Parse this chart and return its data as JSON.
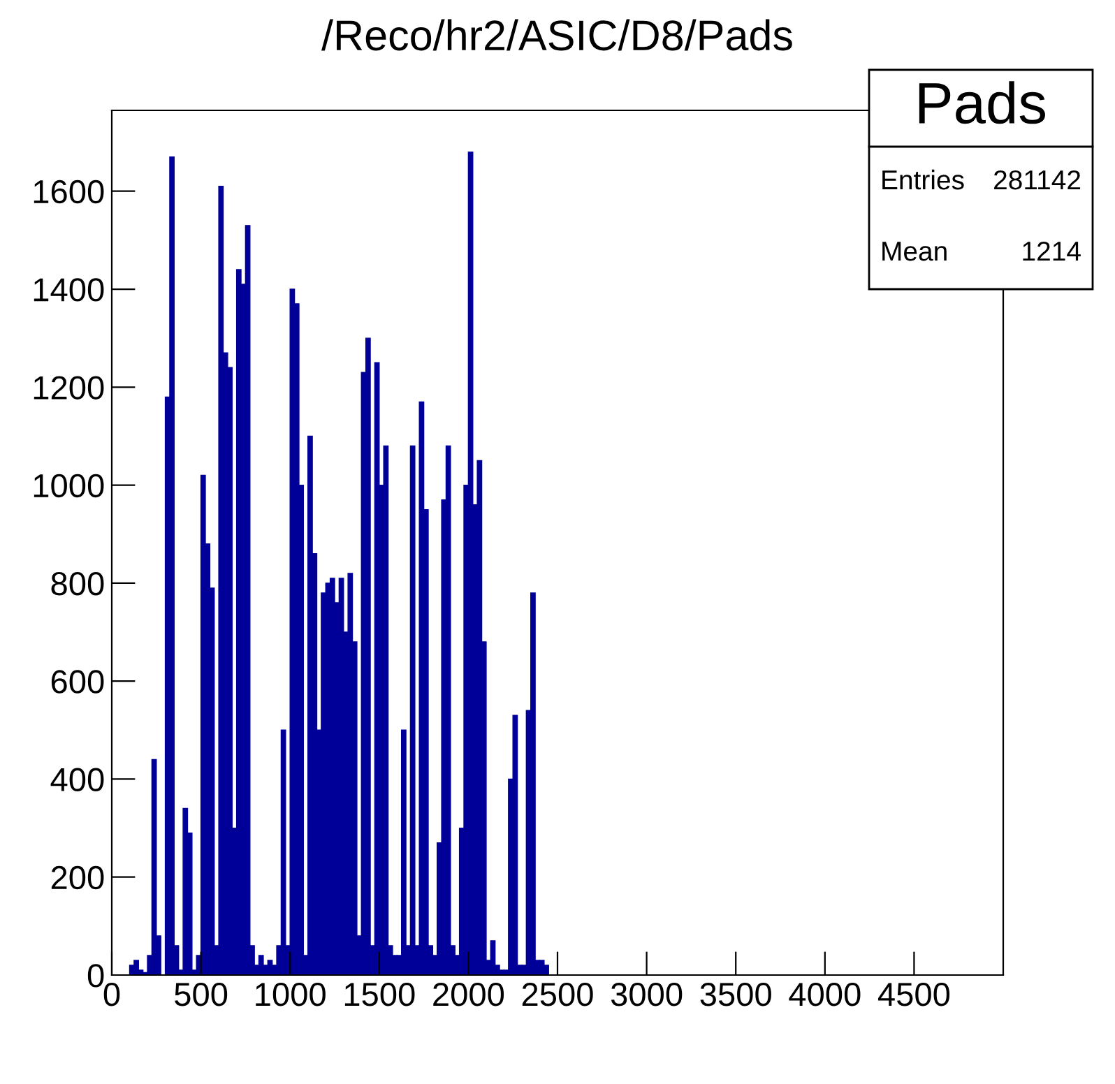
{
  "chart_data": {
    "type": "histogram",
    "title": "/Reco/hr2/ASIC/D8/Pads",
    "bins": [
      0,
      25,
      50,
      75,
      100,
      125,
      150,
      175,
      200,
      225,
      250,
      275,
      300,
      325,
      350,
      375,
      400,
      425,
      450,
      475,
      500,
      525,
      550,
      575,
      600,
      625,
      650,
      675,
      700,
      725,
      750,
      775,
      800,
      825,
      850,
      875,
      900,
      925,
      950,
      975,
      1000,
      1025,
      1050,
      1075,
      1100,
      1125,
      1150,
      1175,
      1200,
      1225,
      1250,
      1275,
      1300,
      1325,
      1350,
      1375,
      1400,
      1425,
      1450,
      1475,
      1500,
      1525,
      1550,
      1575,
      1600,
      1625,
      1650,
      1675,
      1700,
      1725,
      1750,
      1775,
      1800,
      1825,
      1850,
      1875,
      1900,
      1925,
      1950,
      1975,
      2000,
      2025,
      2050,
      2075,
      2100,
      2125,
      2150,
      2175,
      2200,
      2225,
      2250,
      2275,
      2300,
      2325,
      2350,
      2375,
      2400,
      2425,
      2450,
      2475,
      2500
    ],
    "values": [
      0,
      0,
      0,
      0,
      20,
      30,
      10,
      5,
      40,
      440,
      80,
      0,
      1180,
      1670,
      60,
      10,
      340,
      290,
      10,
      40,
      1020,
      880,
      790,
      60,
      1610,
      1270,
      1240,
      300,
      1440,
      1410,
      1530,
      60,
      20,
      40,
      20,
      30,
      20,
      60,
      500,
      60,
      1400,
      1370,
      1000,
      40,
      1100,
      860,
      500,
      780,
      800,
      810,
      760,
      810,
      700,
      820,
      680,
      80,
      1230,
      1300,
      60,
      1250,
      1000,
      1080,
      60,
      40,
      40,
      500,
      60,
      1080,
      60,
      1170,
      950,
      60,
      40,
      270,
      970,
      1080,
      60,
      40,
      300,
      1000,
      1680,
      960,
      1050,
      680,
      30,
      70,
      20,
      10,
      10,
      400,
      530,
      20,
      20,
      540,
      780,
      30,
      30,
      20,
      0,
      0
    ],
    "color": "#000099",
    "xlim": [
      0,
      5000
    ],
    "xticks": [
      0,
      500,
      1000,
      1500,
      2000,
      2500,
      3000,
      3500,
      4000,
      4500
    ],
    "ylim": [
      0,
      1765
    ],
    "yticks": [
      0,
      200,
      400,
      600,
      800,
      1000,
      1200,
      1400,
      1600
    ],
    "annotations": [
      "Pads",
      "Entries",
      "281142",
      "Mean",
      "1214"
    ]
  }
}
